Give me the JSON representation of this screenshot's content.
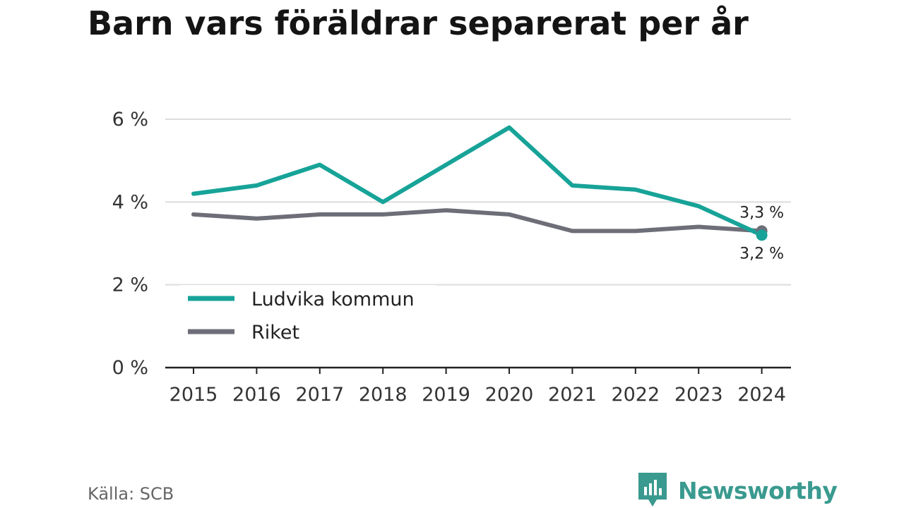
{
  "title": "Barn vars föräldrar separerat per år",
  "source": "Källa: SCB",
  "brand": {
    "name": "Newsworthy",
    "icon": "newsworthy-logo-icon",
    "color": "#3a9a8f"
  },
  "chart_data": {
    "type": "line",
    "title": "Barn vars föräldrar separerat per år",
    "categories": [
      "2015",
      "2016",
      "2017",
      "2018",
      "2019",
      "2020",
      "2021",
      "2022",
      "2023",
      "2024"
    ],
    "series": [
      {
        "name": "Ludvika kommun",
        "color": "#17a398",
        "values": [
          4.2,
          4.4,
          4.9,
          4.0,
          4.9,
          5.8,
          4.4,
          4.3,
          3.9,
          3.2
        ],
        "end_label": "3,2 %"
      },
      {
        "name": "Riket",
        "color": "#6e6e78",
        "values": [
          3.7,
          3.6,
          3.7,
          3.7,
          3.8,
          3.7,
          3.3,
          3.3,
          3.4,
          3.3
        ],
        "end_label": "3,3 %"
      }
    ],
    "y_ticks": [
      {
        "value": 0,
        "label": "0 %"
      },
      {
        "value": 2,
        "label": "2 %"
      },
      {
        "value": 4,
        "label": "4 %"
      },
      {
        "value": 6,
        "label": "6 %"
      }
    ],
    "ylim": [
      0,
      6
    ],
    "grid": true,
    "legend": "bottom-left"
  }
}
